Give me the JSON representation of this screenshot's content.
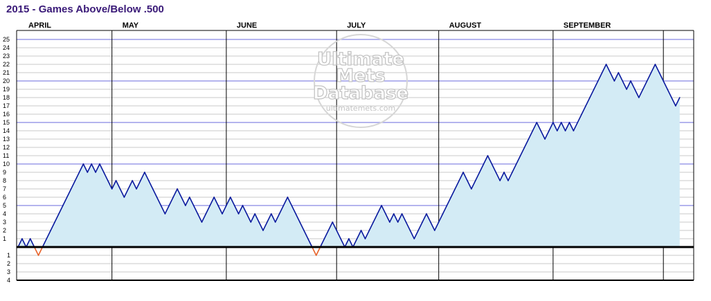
{
  "title": "2015 - Games Above/Below .500",
  "colors": {
    "title": "#3a1a78",
    "line": "#0a1a9e",
    "fill_above": "#d3ebf5",
    "below": "#e8632a",
    "grid_major": "#9b9be8",
    "grid_minor": "#b8b8b8",
    "zero_line": "#000000"
  },
  "watermark": {
    "line1": "Ultimate",
    "line2": "Mets",
    "line3": "Database",
    "url": "ultimatemets.com"
  },
  "chart_data": {
    "type": "line",
    "title": "2015 - Games Above/Below .500",
    "xlabel": "",
    "ylabel": "",
    "ylim": [
      -4,
      25
    ],
    "y_ticks_above": [
      1,
      2,
      3,
      4,
      5,
      6,
      7,
      8,
      9,
      10,
      11,
      12,
      13,
      14,
      15,
      16,
      17,
      18,
      19,
      20,
      21,
      22,
      23,
      24,
      25
    ],
    "y_ticks_below": [
      1,
      2,
      3,
      4
    ],
    "major_gridlines": [
      5,
      10,
      15,
      20,
      25
    ],
    "grid": true,
    "months": [
      {
        "label": "APRIL",
        "games": 23
      },
      {
        "label": "MAY",
        "games": 28
      },
      {
        "label": "JUNE",
        "games": 27
      },
      {
        "label": "JULY",
        "games": 25
      },
      {
        "label": "AUGUST",
        "games": 28
      },
      {
        "label": "SEPTEMBER",
        "games": 27
      },
      {
        "label": "",
        "games": 4
      }
    ],
    "games_played": 162,
    "series": [
      {
        "values": [
          0,
          1,
          0,
          1,
          0,
          -1,
          0,
          1,
          2,
          3,
          4,
          5,
          6,
          7,
          8,
          9,
          10,
          9,
          10,
          9,
          10,
          9,
          8,
          7,
          8,
          7,
          6,
          7,
          8,
          7,
          8,
          9,
          8,
          7,
          6,
          5,
          4,
          5,
          6,
          7,
          6,
          5,
          6,
          5,
          4,
          3,
          4,
          5,
          6,
          5,
          4,
          5,
          6,
          5,
          4,
          5,
          4,
          3,
          4,
          3,
          2,
          3,
          4,
          3,
          4,
          5,
          6,
          5,
          4,
          3,
          2,
          1,
          0,
          -1,
          0,
          1,
          2,
          3,
          2,
          1,
          0,
          1,
          0,
          1,
          2,
          1,
          2,
          3,
          4,
          5,
          4,
          3,
          4,
          3,
          4,
          3,
          2,
          1,
          2,
          3,
          4,
          3,
          2,
          3,
          4,
          5,
          6,
          7,
          8,
          9,
          8,
          7,
          8,
          9,
          10,
          11,
          10,
          9,
          8,
          9,
          8,
          9,
          10,
          11,
          12,
          13,
          14,
          15,
          14,
          13,
          14,
          15,
          14,
          15,
          14,
          15,
          14,
          15,
          16,
          17,
          18,
          19,
          20,
          21,
          22,
          21,
          20,
          21,
          20,
          19,
          20,
          19,
          18,
          19,
          20,
          21,
          22,
          21,
          20,
          19,
          18,
          17,
          18
        ]
      }
    ]
  }
}
